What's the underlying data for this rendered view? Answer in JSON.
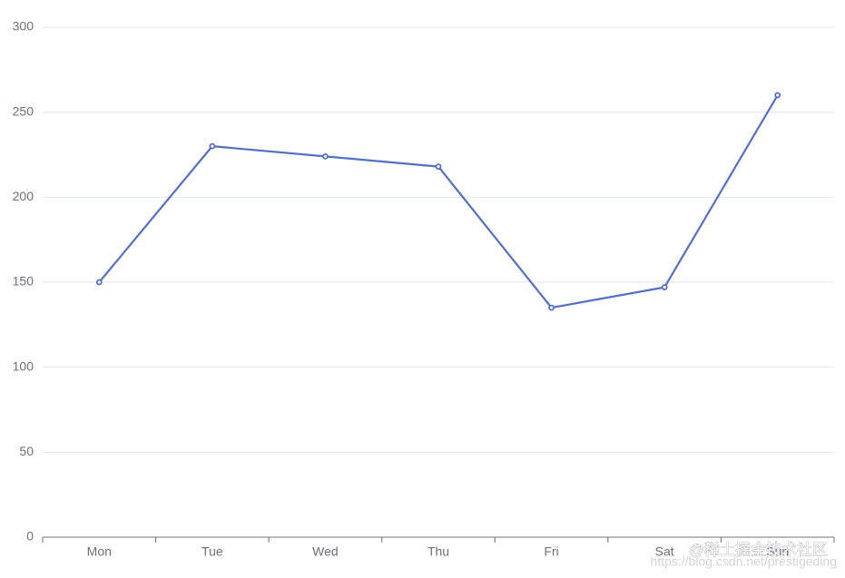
{
  "chart_data": {
    "type": "line",
    "categories": [
      "Mon",
      "Tue",
      "Wed",
      "Thu",
      "Fri",
      "Sat",
      "Sun"
    ],
    "values": [
      150,
      230,
      224,
      218,
      135,
      147,
      260
    ],
    "color": "#5470c6",
    "ylim": [
      0,
      300
    ],
    "yticks": [
      0,
      50,
      100,
      150,
      200,
      250,
      300
    ],
    "grid": true
  },
  "watermarks": [
    "@稀土掘金技术社区",
    "https://blog.csdn.net/prestigeding"
  ]
}
